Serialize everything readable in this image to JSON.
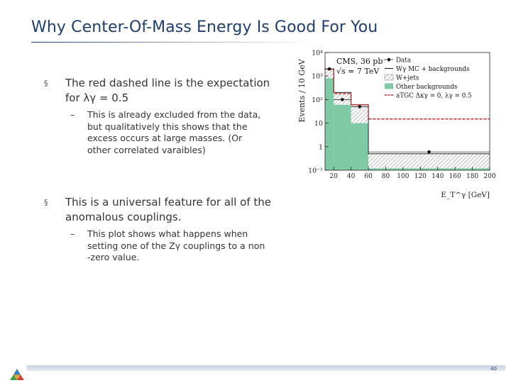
{
  "slide": {
    "title": "Why Center-Of-Mass Energy Is Good For You",
    "bullet1": {
      "marker": "§",
      "line1": "The red dashed line is the expectation",
      "line2": "for λγ = 0.5",
      "sub": {
        "marker": "–",
        "lines": [
          "This is already excluded from the data,",
          "but qualitatively this shows that the",
          "excess occurs at large masses.  (Or",
          "other correlated varaibles)"
        ]
      }
    },
    "bullet2": {
      "marker": "§",
      "line1": "This is a universal feature for all of the",
      "line2": "anomalous couplings.",
      "sub": {
        "marker": "–",
        "lines": [
          "This plot shows what happens when",
          "setting one of the Zγ couplings to a non",
          "-zero value."
        ]
      }
    },
    "page_number": "40"
  },
  "chart_data": {
    "type": "bar",
    "title": "CMS, 36 pb⁻¹",
    "subtitle": "√s = 7 TeV",
    "xlabel": "E_T^γ [GeV]",
    "ylabel": "Events / 10 GeV",
    "log_y": true,
    "xlim": [
      10,
      200
    ],
    "ylim": [
      0.1,
      10000
    ],
    "bin_edges": [
      10,
      20,
      40,
      60,
      200
    ],
    "x_ticks": [
      "20",
      "40",
      "60",
      "80",
      "100",
      "120",
      "140",
      "160",
      "180",
      "200"
    ],
    "y_ticks": [
      "10⁻¹",
      "1",
      "10",
      "10²",
      "10³",
      "10⁴"
    ],
    "series": [
      {
        "name": "Data",
        "x": [
          15,
          30,
          50,
          130
        ],
        "values": [
          2000,
          100,
          50,
          0.6
        ]
      },
      {
        "name": "Wγ MC + backgrounds",
        "values": [
          2000,
          200,
          60,
          0.5
        ]
      },
      {
        "name": "W+jets",
        "values": [
          1000,
          120,
          40,
          0.3
        ]
      },
      {
        "name": "Other backgrounds",
        "values": [
          800,
          60,
          10,
          0.12
        ]
      },
      {
        "name": "aTGC Δκγ = 0, λγ = 0.5",
        "values": [
          2000,
          180,
          60,
          15
        ]
      }
    ],
    "legend_position": "top-right",
    "colors": {
      "other_backgrounds": "#7fc9a4",
      "atgc": "#d62020",
      "w_jets": "#888888"
    }
  }
}
